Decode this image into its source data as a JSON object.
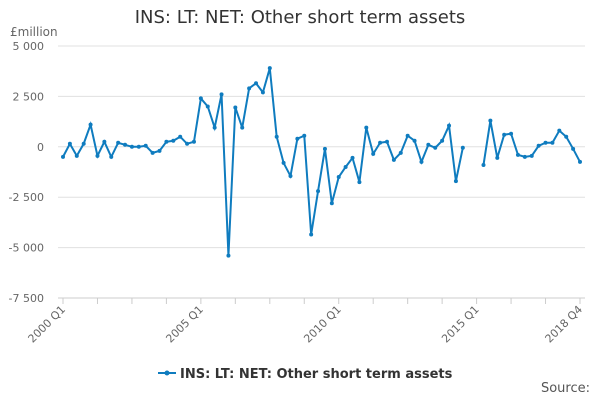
{
  "chart_data": {
    "type": "line",
    "title": "INS: LT: NET: Other short term assets",
    "ylabel": "£million",
    "xlabel": "",
    "ylim": [
      -7500,
      5000
    ],
    "yticks": [
      "5 000",
      "2 500",
      "0",
      "-2 500",
      "-5 000",
      "-7 500"
    ],
    "ytick_values": [
      5000,
      2500,
      0,
      -2500,
      -5000,
      -7500
    ],
    "xtick_labels": [
      "2000 Q1",
      "2005 Q1",
      "2010 Q1",
      "2015 Q1",
      "2018 Q4"
    ],
    "xtick_index": [
      0,
      20,
      40,
      60,
      75
    ],
    "x_start": "2000 Q1",
    "x_end": "2018 Q4",
    "grid": true,
    "legend_position": "bottom",
    "series": [
      {
        "name": "INS: LT: NET: Other short term assets",
        "color": "#0f7cbf",
        "values": [
          -500,
          150,
          -450,
          150,
          1100,
          -450,
          250,
          -500,
          200,
          100,
          0,
          0,
          50,
          -300,
          -200,
          250,
          300,
          500,
          150,
          250,
          2400,
          2000,
          950,
          2600,
          -5400,
          1950,
          950,
          2900,
          3150,
          2700,
          3900,
          500,
          -800,
          -1450,
          400,
          550,
          -4350,
          -2200,
          -100,
          -2800,
          -1500,
          -1000,
          -550,
          -1750,
          950,
          -350,
          200,
          250,
          -650,
          -300,
          550,
          300,
          -750,
          100,
          -50,
          300,
          1050,
          -1700,
          -50,
          null,
          null,
          -900,
          1300,
          -550,
          600,
          650,
          -400,
          -500,
          -450,
          50,
          200,
          200,
          800,
          500,
          -100,
          -750
        ]
      }
    ]
  },
  "source_label": "Source:"
}
